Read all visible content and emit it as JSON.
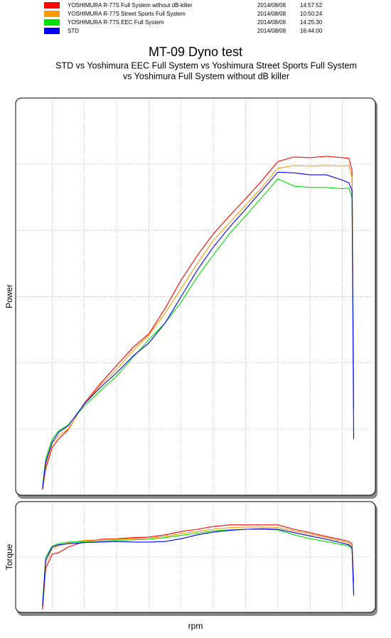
{
  "chart_data": [
    {
      "type": "line",
      "title": "MT-09 Dyno test",
      "subtitle": [
        "STD vs Yoshimura EEC Full System vs Yoshimura Street Sports Full System",
        "vs Yoshimura Full System without dB killer"
      ],
      "ylabel": "Power",
      "grid": true,
      "xlim": [
        0,
        11
      ],
      "xticks": [
        1,
        2,
        3,
        4,
        5,
        6,
        7,
        8,
        9,
        10
      ],
      "ylim": [
        0,
        6
      ],
      "yticks": [
        1,
        2,
        3,
        4,
        5
      ],
      "x": [
        0.7,
        0.8,
        1,
        1.2,
        1.5,
        2,
        2.5,
        3,
        3.5,
        4,
        4.5,
        5,
        5.5,
        6,
        6.5,
        7,
        7.5,
        8,
        8.5,
        9,
        9.5,
        10,
        10.2,
        10.3,
        10.35
      ],
      "series": [
        {
          "name": "YOSHIMURA R-77S Full System without dB-killer",
          "date": "2014/08/08",
          "time": "14:57:52",
          "color": "#ff0000",
          "values": [
            0.08,
            0.4,
            0.72,
            0.85,
            0.99,
            1.39,
            1.69,
            1.96,
            2.23,
            2.44,
            2.82,
            3.25,
            3.62,
            3.95,
            4.22,
            4.48,
            4.75,
            5.04,
            5.11,
            5.1,
            5.12,
            5.1,
            5.09,
            4.91,
            1.3
          ]
        },
        {
          "name": "YOSHIMURA R-77S Street Sports Full System",
          "date": "2014/08/08",
          "time": "10:50:24",
          "color": "#ff9900",
          "values": [
            0.1,
            0.45,
            0.78,
            0.9,
            1.0,
            1.38,
            1.66,
            1.9,
            2.18,
            2.42,
            2.75,
            3.12,
            3.5,
            3.85,
            4.12,
            4.38,
            4.65,
            4.94,
            4.98,
            4.97,
            4.98,
            4.97,
            4.98,
            4.8,
            1.5
          ]
        },
        {
          "name": "YOSHIMURA R-77S EEC Full System",
          "date": "2014/08/08",
          "time": "14:25:30",
          "color": "#00e000",
          "values": [
            0.12,
            0.55,
            0.85,
            0.97,
            1.06,
            1.35,
            1.58,
            1.8,
            2.08,
            2.35,
            2.6,
            2.92,
            3.3,
            3.63,
            3.95,
            4.22,
            4.5,
            4.78,
            4.67,
            4.65,
            4.65,
            4.63,
            4.64,
            4.5,
            1.3
          ]
        },
        {
          "name": "STD",
          "date": "2014/08/08",
          "time": "16:44:00",
          "color": "#0000ff",
          "values": [
            0.1,
            0.5,
            0.8,
            0.95,
            1.05,
            1.38,
            1.63,
            1.85,
            2.1,
            2.3,
            2.6,
            3.0,
            3.4,
            3.75,
            4.05,
            4.32,
            4.6,
            4.88,
            4.87,
            4.84,
            4.84,
            4.76,
            4.72,
            4.6,
            0.85
          ]
        }
      ]
    },
    {
      "type": "line",
      "ylabel": "Torque",
      "xlabel": "rpm",
      "grid": true,
      "xlim": [
        0,
        11
      ],
      "xticks": [
        1,
        2,
        3,
        4,
        5,
        6,
        7,
        8,
        9,
        10
      ],
      "ylim": [
        0,
        2
      ],
      "yticks": [
        1
      ],
      "x": [
        0.7,
        0.8,
        1,
        1.2,
        1.5,
        2,
        2.5,
        3,
        3.5,
        4,
        4.5,
        5,
        5.5,
        6,
        6.5,
        7,
        7.5,
        8,
        8.5,
        9,
        9.5,
        10,
        10.2,
        10.3,
        10.35
      ],
      "series": [
        {
          "color": "#ff0000",
          "values": [
            0.05,
            0.8,
            1.05,
            1.08,
            1.18,
            1.28,
            1.32,
            1.33,
            1.35,
            1.36,
            1.4,
            1.46,
            1.5,
            1.55,
            1.58,
            1.58,
            1.58,
            1.58,
            1.5,
            1.44,
            1.37,
            1.31,
            1.28,
            1.24,
            0.54
          ]
        },
        {
          "color": "#ff9900",
          "values": [
            0.1,
            0.9,
            1.15,
            1.2,
            1.25,
            1.3,
            1.31,
            1.32,
            1.33,
            1.34,
            1.37,
            1.42,
            1.46,
            1.5,
            1.53,
            1.54,
            1.54,
            1.53,
            1.47,
            1.41,
            1.35,
            1.28,
            1.25,
            1.2,
            0.4
          ]
        },
        {
          "color": "#00e000",
          "values": [
            0.15,
            1.0,
            1.2,
            1.24,
            1.27,
            1.28,
            1.29,
            1.3,
            1.31,
            1.32,
            1.35,
            1.39,
            1.43,
            1.47,
            1.49,
            1.5,
            1.5,
            1.49,
            1.4,
            1.33,
            1.28,
            1.22,
            1.2,
            1.15,
            0.35
          ]
        },
        {
          "color": "#0000ff",
          "values": [
            0.1,
            0.95,
            1.18,
            1.22,
            1.24,
            1.26,
            1.27,
            1.28,
            1.27,
            1.27,
            1.28,
            1.33,
            1.4,
            1.45,
            1.48,
            1.5,
            1.51,
            1.5,
            1.44,
            1.38,
            1.32,
            1.25,
            1.22,
            1.17,
            0.3
          ]
        }
      ]
    }
  ]
}
